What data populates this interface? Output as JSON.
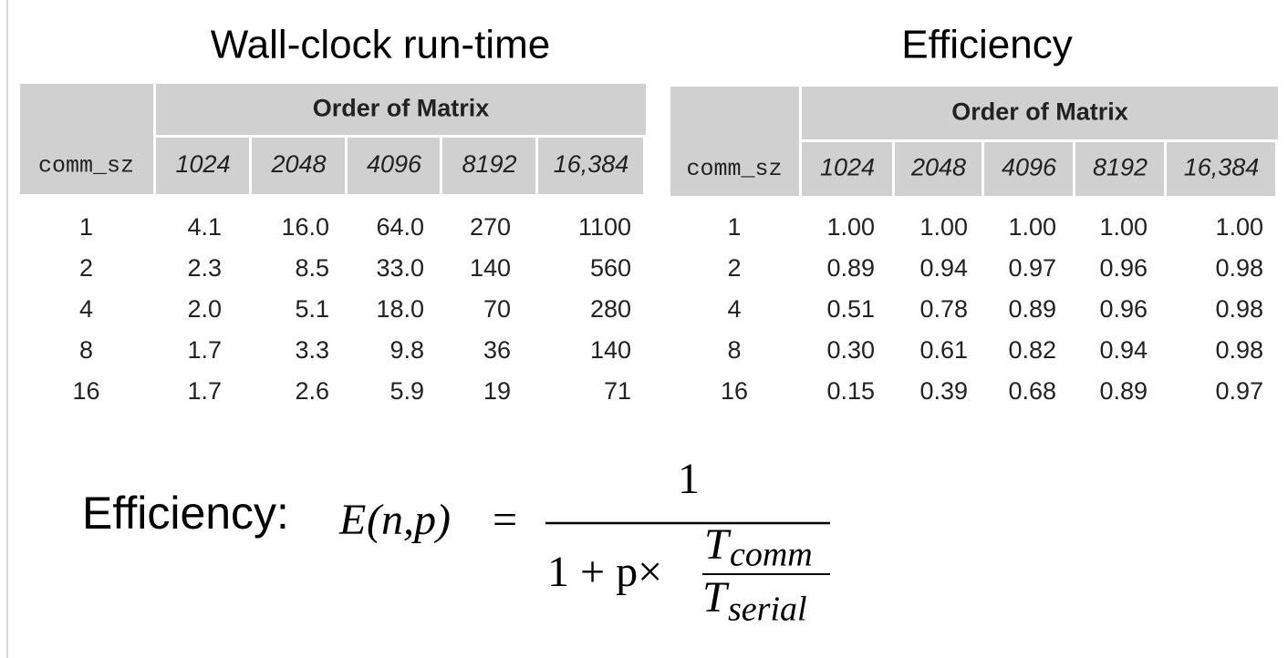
{
  "left_table": {
    "title": "Wall-clock run-time",
    "corner_label": "comm_sz",
    "group_header": "Order of Matrix",
    "columns": [
      "1024",
      "2048",
      "4096",
      "8192",
      "16,384"
    ],
    "rows": [
      [
        "1",
        "4.1",
        "16.0",
        "64.0",
        "270",
        "1100"
      ],
      [
        "2",
        "2.3",
        "8.5",
        "33.0",
        "140",
        "560"
      ],
      [
        "4",
        "2.0",
        "5.1",
        "18.0",
        "70",
        "280"
      ],
      [
        "8",
        "1.7",
        "3.3",
        "9.8",
        "36",
        "140"
      ],
      [
        "16",
        "1.7",
        "2.6",
        "5.9",
        "19",
        "71"
      ]
    ]
  },
  "right_table": {
    "title": "Efficiency",
    "corner_label": "comm_sz",
    "group_header": "Order of Matrix",
    "columns": [
      "1024",
      "2048",
      "4096",
      "8192",
      "16,384"
    ],
    "rows": [
      [
        "1",
        "1.00",
        "1.00",
        "1.00",
        "1.00",
        "1.00"
      ],
      [
        "2",
        "0.89",
        "0.94",
        "0.97",
        "0.96",
        "0.98"
      ],
      [
        "4",
        "0.51",
        "0.78",
        "0.89",
        "0.96",
        "0.98"
      ],
      [
        "8",
        "0.30",
        "0.61",
        "0.82",
        "0.94",
        "0.98"
      ],
      [
        "16",
        "0.15",
        "0.39",
        "0.68",
        "0.89",
        "0.97"
      ]
    ]
  },
  "formula": {
    "label": "Efficiency:",
    "lhs_symbol": "E",
    "lhs_args": "(n,p)",
    "equals": "=",
    "numerator": "1",
    "denominator_prefix": "1 + p×",
    "ratio_numerator": "T",
    "ratio_numerator_sub": "comm",
    "ratio_denominator": "T",
    "ratio_denominator_sub": "serial"
  }
}
